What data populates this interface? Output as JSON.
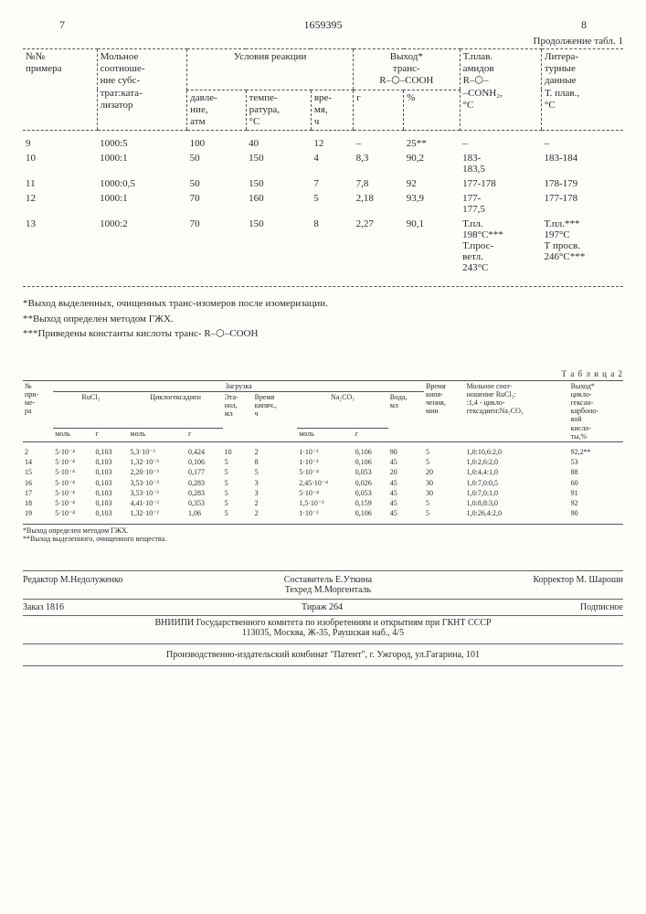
{
  "header": {
    "col_left": "7",
    "patent": "1659395",
    "col_right": "8",
    "continuation": "Продолжение табл. 1"
  },
  "table1": {
    "head": {
      "c1": "№№\nпримера",
      "c2": "Мольное\nсоотноше-\nние субс-\nтрат:ката-\nлизатор",
      "c3": "Условия реакции",
      "c3a": "давле-\nние,\nатм",
      "c3b": "темпе-\nратура,\n°С",
      "c3c": "вре-\nмя,\nч",
      "c4": "Выход*\nтранс-\nR–⬡–COOH",
      "c4a": "г",
      "c4b": "%",
      "c5": "Т.плав.\nамидов\nR–⬡–\n–CONH₂,\n°С",
      "c6": "Литера-\nтурные\nданные\nТ. плав.,\n°С"
    },
    "rows": [
      {
        "n": "9",
        "ratio": "1000:5",
        "p": "100",
        "t": "40",
        "h": "12",
        "g": "–",
        "pct": "25**",
        "mp": "–",
        "lit": "–"
      },
      {
        "n": "10",
        "ratio": "1000:1",
        "p": "50",
        "t": "150",
        "h": "4",
        "g": "8,3",
        "pct": "90,2",
        "mp": "183-\n183,5",
        "lit": "183-184"
      },
      {
        "n": "11",
        "ratio": "1000:0,5",
        "p": "50",
        "t": "150",
        "h": "7",
        "g": "7,8",
        "pct": "92",
        "mp": "177-178",
        "lit": "178-179"
      },
      {
        "n": "12",
        "ratio": "1000:1",
        "p": "70",
        "t": "160",
        "h": "5",
        "g": "2,18",
        "pct": "93,9",
        "mp": "177-\n177,5",
        "lit": "177-178"
      },
      {
        "n": "13",
        "ratio": "1000:2",
        "p": "70",
        "t": "150",
        "h": "8",
        "g": "2,27",
        "pct": "90,1",
        "mp": "Т.пл.\n198°С***\nТ.прос-\nветл.\n243°С",
        "lit": "Т.пл.***\n197°С\nТ просв.\n246°С***"
      }
    ]
  },
  "footnotes1": {
    "f1": "*Выход выделенных, очищенных транс-изомеров после изомеризации.",
    "f2": "**Выход определен методом ГЖХ.",
    "f3": "***Приведены константы кислоты транс- R–⬡–COOH"
  },
  "table2": {
    "label": "Т а б л и ц а 2",
    "head": {
      "c0": "№\nпри-\nме-\nра",
      "zagr": "Загрузка",
      "rucl": "RuCl₃",
      "rucl_m": "моль",
      "rucl_g": "г",
      "chd": "Циклогексадиен",
      "chd_m": "моль",
      "chd_g": "г",
      "eth": "Эта-\nнол,\nмл",
      "boil": "Время\nкипяч.,\nч",
      "na": "Na₂CO₃",
      "na_m": "моль",
      "na_g": "г",
      "water": "Вода,\nмл",
      "boil2": "Время\nкипя-\nчения,\nмин",
      "ratio": "Мольное соот-\nношение RuCl₃:\n:1,4 - цикло-\nгексадиен:Na₂CO₃",
      "yield": "Выход*\nцикло-\nгексан-\nкарбоно-\nвой\nкисло-\nты,%"
    },
    "rows": [
      {
        "n": "2",
        "rm": "5·10⁻⁴",
        "rg": "0,103",
        "cm": "5,3·10⁻³",
        "cg": "0,424",
        "e": "10",
        "b": "2",
        "nm": "1·10⁻³",
        "ng": "0,106",
        "w": "90",
        "b2": "5",
        "rat": "1,0:10,6:2,0",
        "y": "92,2**"
      },
      {
        "n": "14",
        "rm": "5·10⁻⁴",
        "rg": "0,103",
        "cm": "1,32·10⁻³",
        "cg": "0,106",
        "e": "5",
        "b": "8",
        "nm": "1·10⁻³",
        "ng": "0,106",
        "w": "45",
        "b2": "5",
        "rat": "1,0:2,6:2,0",
        "y": "53"
      },
      {
        "n": "15",
        "rm": "5·10⁻⁴",
        "rg": "0,103",
        "cm": "2,20·10⁻³",
        "cg": "0,177",
        "e": "5",
        "b": "5",
        "nm": "5·10⁻⁴",
        "ng": "0,053",
        "w": "20",
        "b2": "20",
        "rat": "1,0:4,4:1,0",
        "y": "88"
      },
      {
        "n": "16",
        "rm": "5·10⁻⁴",
        "rg": "0,103",
        "cm": "3,53·10⁻³",
        "cg": "0,283",
        "e": "5",
        "b": "3",
        "nm": "2,45·10⁻⁴",
        "ng": "0,026",
        "w": "45",
        "b2": "30",
        "rat": "1,0:7,0:0,5",
        "y": "60"
      },
      {
        "n": "17",
        "rm": "5·10⁻⁴",
        "rg": "0,103",
        "cm": "3,53·10⁻³",
        "cg": "0,283",
        "e": "5",
        "b": "3",
        "nm": "5·10⁻⁴",
        "ng": "0,053",
        "w": "45",
        "b2": "30",
        "rat": "1,0:7,0:1,0",
        "y": "91"
      },
      {
        "n": "18",
        "rm": "5·10⁻⁴",
        "rg": "0,103",
        "cm": "4,41·10⁻³",
        "cg": "0,353",
        "e": "5",
        "b": "2",
        "nm": "1,5·10⁻³",
        "ng": "0,159",
        "w": "45",
        "b2": "5",
        "rat": "1,0:8,8:3,0",
        "y": "92"
      },
      {
        "n": "19",
        "rm": "5·10⁻⁴",
        "rg": "0,103",
        "cm": "1,32·10⁻²",
        "cg": "1,06",
        "e": "5",
        "b": "2",
        "nm": "1·10⁻³",
        "ng": "0,106",
        "w": "45",
        "b2": "5",
        "rat": "1,0:26,4:2,0",
        "y": "90"
      }
    ],
    "fn1": "*Выход определен методом ГЖХ.",
    "fn2": "**Выход выделенного, очищенного вещества."
  },
  "credits": {
    "editor": "Редактор М.Недолуженко",
    "compiler": "Составитель Е.Уткина",
    "techred": "Техред М.Моргенталь",
    "corrector": "Корректор М. Шароши",
    "order": "Заказ 1816",
    "tirage": "Тираж   264",
    "sub": "Подписное",
    "org": "ВНИИПИ Государственного комитета по изобретениям и открытиям при ГКНТ СССР",
    "addr": "113035, Москва, Ж-35, Раушская наб., 4/5",
    "printer": "Производственно-издательский комбинат \"Патент\", г. Ужгород, ул.Гагарина, 101"
  }
}
